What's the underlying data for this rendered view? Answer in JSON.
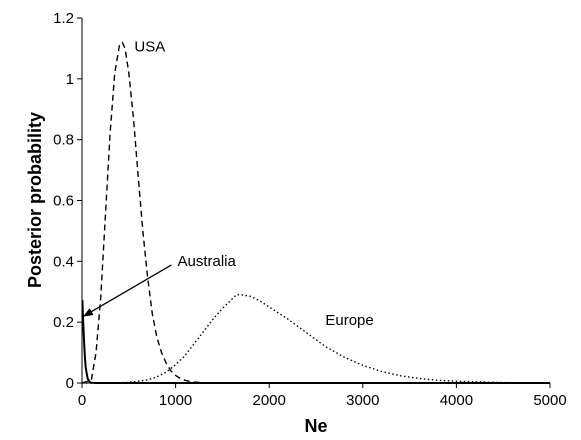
{
  "chart_data": {
    "type": "line",
    "xlabel": "Ne",
    "ylabel": "Posterior probability",
    "xlim": [
      0,
      5000
    ],
    "ylim": [
      0,
      1.2
    ],
    "x_ticks": [
      0,
      1000,
      2000,
      3000,
      4000,
      5000
    ],
    "y_ticks": [
      0,
      0.2,
      0.4,
      0.6,
      0.8,
      1,
      1.2
    ],
    "x_tick_labels": [
      "0",
      "1000",
      "2000",
      "3000",
      "4000",
      "5000"
    ],
    "y_tick_labels": [
      "0",
      "0.2",
      "0.4",
      "0.6",
      "0.8",
      "1",
      "1.2"
    ],
    "grid": false,
    "series": [
      {
        "name": "USA",
        "line_style": "dashed",
        "color": "#000000",
        "x": [
          0,
          100,
          150,
          200,
          250,
          300,
          350,
          400,
          430,
          460,
          500,
          550,
          600,
          650,
          700,
          750,
          800,
          850,
          900,
          950,
          1000,
          1050,
          1100,
          1150,
          1200,
          1300,
          1400,
          1500,
          2000,
          3000,
          5000
        ],
        "y": [
          0,
          0.01,
          0.1,
          0.28,
          0.55,
          0.82,
          1.02,
          1.11,
          1.12,
          1.1,
          1.02,
          0.87,
          0.68,
          0.5,
          0.35,
          0.23,
          0.15,
          0.1,
          0.065,
          0.04,
          0.025,
          0.015,
          0.009,
          0.005,
          0.003,
          0.001,
          0,
          0,
          0,
          0,
          0
        ]
      },
      {
        "name": "Australia",
        "line_style": "solid",
        "color": "#000000",
        "x": [
          0,
          5,
          10,
          20,
          30,
          40,
          60,
          80,
          100,
          150,
          5000
        ],
        "y": [
          0.27,
          0.27,
          0.22,
          0.15,
          0.09,
          0.05,
          0.015,
          0.004,
          0.001,
          0,
          0
        ]
      },
      {
        "name": "Europe",
        "line_style": "dotted",
        "color": "#000000",
        "x": [
          0,
          300,
          500,
          700,
          800,
          900,
          1000,
          1100,
          1200,
          1300,
          1400,
          1500,
          1600,
          1650,
          1700,
          1800,
          1900,
          2000,
          2200,
          2400,
          2600,
          2800,
          3000,
          3200,
          3400,
          3600,
          3800,
          4000,
          4200,
          4400,
          4600,
          4800,
          5000
        ],
        "y": [
          0,
          0,
          0.002,
          0.01,
          0.02,
          0.036,
          0.06,
          0.09,
          0.13,
          0.17,
          0.21,
          0.245,
          0.275,
          0.29,
          0.29,
          0.285,
          0.27,
          0.25,
          0.21,
          0.165,
          0.12,
          0.085,
          0.058,
          0.038,
          0.024,
          0.015,
          0.009,
          0.006,
          0.004,
          0.002,
          0.001,
          0.0005,
          0
        ]
      }
    ],
    "annotations": [
      {
        "text": "USA",
        "x": 560,
        "y": 1.09
      },
      {
        "text": "Australia",
        "x": 1020,
        "y": 0.385,
        "arrow_to": {
          "x": 20,
          "y": 0.22
        }
      },
      {
        "text": "Europe",
        "x": 2600,
        "y": 0.19
      }
    ]
  }
}
